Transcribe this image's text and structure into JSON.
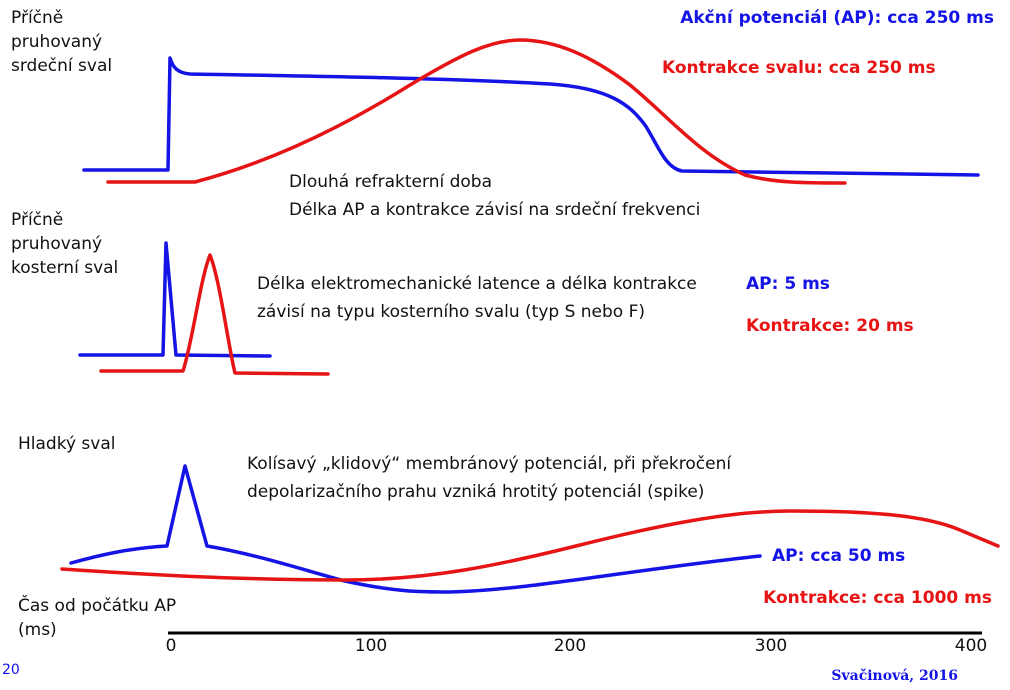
{
  "colors": {
    "ap": "#1414e6",
    "contraction": "#e61414",
    "text": "#111111",
    "axis": "#000000"
  },
  "panels": {
    "cardiac": {
      "label_lines": [
        "Příčně",
        "pruhovaný",
        "srdeční sval"
      ],
      "ap_label": "Akční potenciál (AP): cca 250 ms",
      "contraction_label": "Kontrakce svalu: cca 250 ms",
      "notes": [
        "Dlouhá refrakterní doba",
        "Délka AP a kontrakce závisí na srdeční frekvenci"
      ]
    },
    "skeletal": {
      "label_lines": [
        "Příčně",
        "pruhovaný",
        "kosterní sval"
      ],
      "notes": [
        "Délka elektromechanické latence a délka kontrakce",
        "závisí na typu kosterního svalu (typ S nebo F)"
      ],
      "ap_label": "AP: 5 ms",
      "contraction_label": "Kontrakce: 20 ms"
    },
    "smooth": {
      "label": "Hladký sval",
      "notes": [
        "Kolísavý „klidový“ membránový potenciál,  při překročení",
        "depolarizačního prahu vzniká hrotitý potenciál (spike)"
      ],
      "ap_label": "AP: cca 50 ms",
      "contraction_label": "Kontrakce: cca 1000 ms"
    }
  },
  "axis": {
    "title_lines": [
      "Čas od počátku AP",
      "(ms)"
    ],
    "ticks": [
      "0",
      "100",
      "200",
      "300",
      "400"
    ]
  },
  "footer": {
    "page_number": "20",
    "credit": "Svačinová, 2016"
  }
}
